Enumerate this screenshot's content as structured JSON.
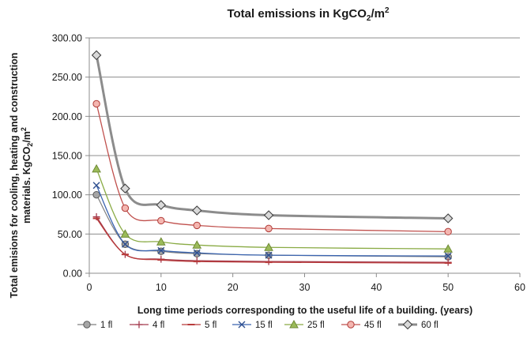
{
  "chart_data": {
    "type": "line",
    "title_main": "Total emissions in KgCO",
    "title_sub": "2",
    "title_tail": "/m",
    "title_sup": "2",
    "xlabel": "Long time periods corresponding to the useful life of a building. (years)",
    "ylabel_line1": "Total emisions for cooling, heating and construction",
    "ylabel_line2_main": "materials. KgCO",
    "ylabel_line2_sub": "2",
    "ylabel_line2_tail": "/m",
    "ylabel_line2_sup": "2",
    "xlim": [
      0,
      60
    ],
    "ylim": [
      0,
      300
    ],
    "x_ticks": [
      "0",
      "10",
      "20",
      "30",
      "40",
      "50",
      "60"
    ],
    "y_ticks": [
      "0.00",
      "50.00",
      "100.00",
      "150.00",
      "200.00",
      "250.00",
      "300.00"
    ],
    "grid": "horizontal",
    "legend_position": "bottom",
    "x": [
      1,
      5,
      10,
      15,
      25,
      50
    ],
    "series": [
      {
        "name": "1 fl",
        "values": [
          100,
          37,
          28,
          25,
          23,
          21
        ],
        "color": "#a6a6a6",
        "line_color": "#7f7f7f",
        "marker": "circle"
      },
      {
        "name": "4 fl",
        "values": [
          72,
          24,
          18,
          16,
          15,
          14
        ],
        "color": "#a33b4e",
        "line_color": "#a33b4e",
        "marker": "plus"
      },
      {
        "name": "5 fl",
        "values": [
          70,
          24,
          17,
          15,
          14,
          13
        ],
        "color": "#b83a3a",
        "line_color": "#b83a3a",
        "marker": "dash"
      },
      {
        "name": "15 fl",
        "values": [
          112,
          37,
          29,
          26,
          23,
          22
        ],
        "color": "#2f4f8f",
        "line_color": "#3a64b0",
        "marker": "x"
      },
      {
        "name": "25 fl",
        "values": [
          133,
          50,
          40,
          36,
          33,
          31
        ],
        "color": "#9bbb59",
        "line_color": "#8aab45",
        "marker": "triangle"
      },
      {
        "name": "45 fl",
        "values": [
          216,
          83,
          67,
          61,
          57,
          53
        ],
        "color": "#f4b6b0",
        "line_color": "#c0504d",
        "marker": "circle"
      },
      {
        "name": "60 fl",
        "values": [
          278,
          108,
          87,
          80,
          74,
          70
        ],
        "color": "#d9d9d9",
        "line_color": "#8c8c8c",
        "marker": "diamond"
      }
    ]
  }
}
